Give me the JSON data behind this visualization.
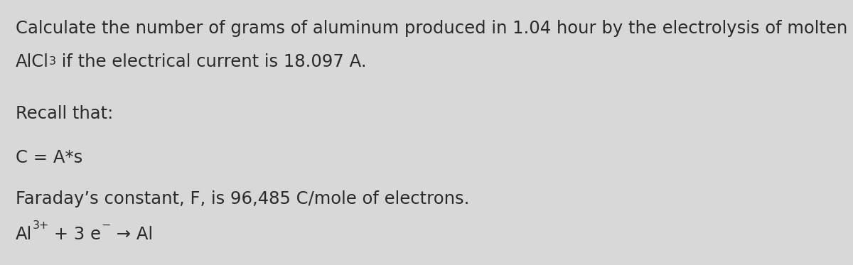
{
  "background_color": "#d8d8d8",
  "text_color": "#2a2a2a",
  "font_size": 17.5,
  "font_family": "DejaVu Sans",
  "line1": "Calculate the number of grams of aluminum produced in 1.04 hour by the electrolysis of molten",
  "line2_pre": "AlCl",
  "line2_sub": "3",
  "line2_post": " if the electrical current is 18.097 A.",
  "recall_label": "Recall that:",
  "coulomb_eq": "C = A*s",
  "faraday_line": "Faraday’s constant, F, is 96,485 C/mole of electrons.",
  "rxn_al": "Al",
  "rxn_sup": "3+",
  "rxn_mid": " + 3 e",
  "rxn_esup": "−",
  "rxn_arrow_al": " → Al"
}
